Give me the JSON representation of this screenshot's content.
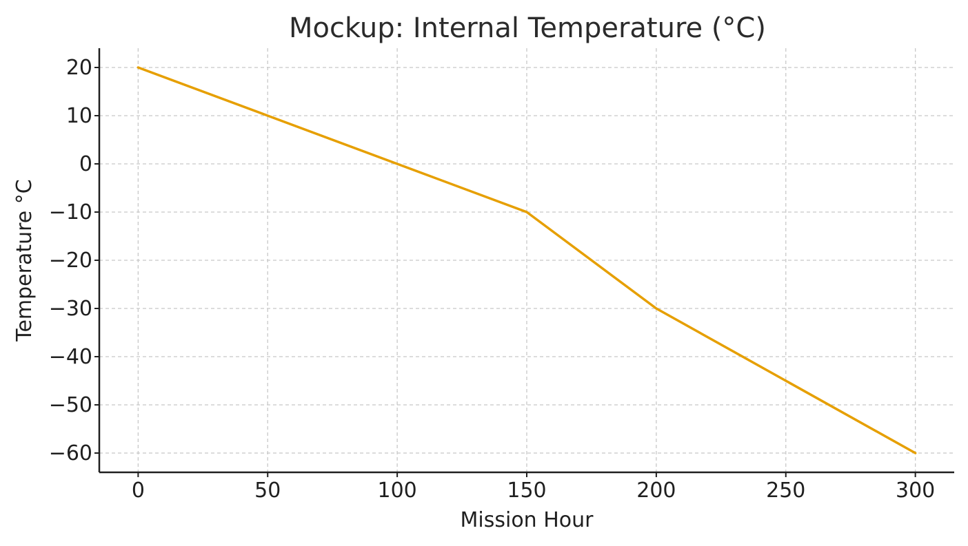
{
  "chart_data": {
    "type": "line",
    "title": "Mockup: Internal Temperature (°C)",
    "xlabel": "Mission Hour",
    "ylabel": "Temperature °C",
    "x": [
      0,
      50,
      100,
      150,
      200,
      250,
      300
    ],
    "series": [
      {
        "values": [
          20,
          10,
          0,
          -10,
          -30,
          -45,
          -60
        ],
        "color": "#E69F00"
      }
    ],
    "xlim": [
      -15,
      315
    ],
    "ylim": [
      -64,
      24
    ],
    "xticks": [
      0,
      50,
      100,
      150,
      200,
      250,
      300
    ],
    "xtick_labels": [
      "0",
      "50",
      "100",
      "150",
      "200",
      "250",
      "300"
    ],
    "yticks": [
      20,
      10,
      0,
      -10,
      -20,
      -30,
      -40,
      -50,
      -60
    ],
    "ytick_labels": [
      "20",
      "10",
      "0",
      "−10",
      "−20",
      "−30",
      "−40",
      "−50",
      "−60"
    ],
    "grid": true,
    "grid_color": "#c8c8c8",
    "axis_color": "#1f1f1f"
  }
}
